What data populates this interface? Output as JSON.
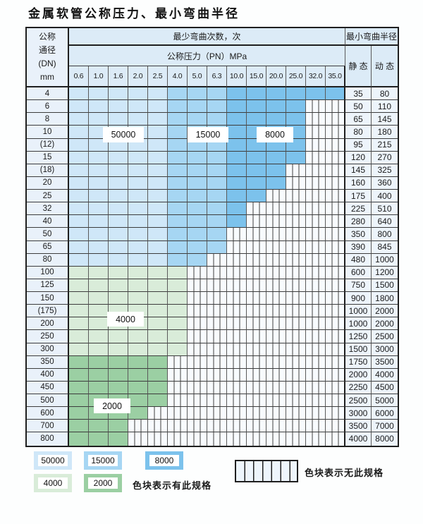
{
  "title": "金属软管公称压力、最小弯曲半径",
  "colors": {
    "blue_50000": "#cfe7f8",
    "blue_15000": "#a6d6f3",
    "blue_8000": "#7cc2ec",
    "green_4000": "#d9ecd9",
    "green_2000": "#9bcfa3",
    "hatch_bg": "#f8fbfe"
  },
  "table": {
    "header": {
      "dn_lines": [
        "公称",
        "通径",
        "(DN)",
        "mm"
      ],
      "bend_cycles": "最少弯曲次数，次",
      "pressure": "公称压力（PN）MPa",
      "pressure_values": [
        "0.6",
        "1.0",
        "1.6",
        "2.0",
        "2.5",
        "4.0",
        "5.0",
        "6.3",
        "10.0",
        "15.0",
        "20.0",
        "25.0",
        "32.0",
        "35.0"
      ],
      "min_bend_radius": "最小弯曲半径",
      "static": "静 态",
      "dynamic": "动 态"
    },
    "zone_columns": {
      "blue_50000": [
        0,
        4
      ],
      "blue_15000": [
        5,
        7
      ],
      "blue_8000": [
        8,
        13
      ]
    },
    "rows": [
      {
        "dn": "4",
        "colored": 14,
        "zone": "blue",
        "static": "35",
        "dynamic": "80"
      },
      {
        "dn": "6",
        "colored": 12,
        "zone": "blue",
        "static": "50",
        "dynamic": "110"
      },
      {
        "dn": "8",
        "colored": 12,
        "zone": "blue",
        "static": "65",
        "dynamic": "145"
      },
      {
        "dn": "10",
        "colored": 12,
        "zone": "blue",
        "static": "80",
        "dynamic": "180"
      },
      {
        "dn": "(12)",
        "colored": 12,
        "zone": "blue",
        "static": "95",
        "dynamic": "215"
      },
      {
        "dn": "15",
        "colored": 12,
        "zone": "blue",
        "static": "120",
        "dynamic": "270"
      },
      {
        "dn": "(18)",
        "colored": 11,
        "zone": "blue",
        "static": "145",
        "dynamic": "325"
      },
      {
        "dn": "20",
        "colored": 11,
        "zone": "blue",
        "static": "160",
        "dynamic": "360"
      },
      {
        "dn": "25",
        "colored": 10,
        "zone": "blue",
        "static": "175",
        "dynamic": "400"
      },
      {
        "dn": "32",
        "colored": 9,
        "zone": "blue",
        "static": "225",
        "dynamic": "510"
      },
      {
        "dn": "40",
        "colored": 9,
        "zone": "blue",
        "static": "280",
        "dynamic": "640"
      },
      {
        "dn": "50",
        "colored": 8,
        "zone": "blue",
        "static": "350",
        "dynamic": "800"
      },
      {
        "dn": "65",
        "colored": 8,
        "zone": "blue",
        "static": "390",
        "dynamic": "845"
      },
      {
        "dn": "80",
        "colored": 7,
        "zone": "blue",
        "static": "480",
        "dynamic": "1000"
      },
      {
        "dn": "100",
        "colored": 6,
        "zone": "green_4000",
        "static": "600",
        "dynamic": "1200"
      },
      {
        "dn": "125",
        "colored": 6,
        "zone": "green_4000",
        "static": "750",
        "dynamic": "1500"
      },
      {
        "dn": "150",
        "colored": 6,
        "zone": "green_4000",
        "static": "900",
        "dynamic": "1800"
      },
      {
        "dn": "(175)",
        "colored": 6,
        "zone": "green_4000",
        "static": "1000",
        "dynamic": "2000"
      },
      {
        "dn": "200",
        "colored": 6,
        "zone": "green_4000",
        "static": "1000",
        "dynamic": "2000"
      },
      {
        "dn": "250",
        "colored": 6,
        "zone": "green_4000",
        "static": "1250",
        "dynamic": "2500"
      },
      {
        "dn": "300",
        "colored": 6,
        "zone": "green_4000",
        "static": "1500",
        "dynamic": "3000"
      },
      {
        "dn": "350",
        "colored": 5,
        "zone": "green_2000",
        "static": "1750",
        "dynamic": "3500"
      },
      {
        "dn": "400",
        "colored": 5,
        "zone": "green_2000",
        "static": "2000",
        "dynamic": "4000"
      },
      {
        "dn": "450",
        "colored": 5,
        "zone": "green_2000",
        "static": "2250",
        "dynamic": "4500"
      },
      {
        "dn": "500",
        "colored": 5,
        "zone": "green_2000",
        "static": "2500",
        "dynamic": "5000"
      },
      {
        "dn": "600",
        "colored": 4,
        "zone": "green_2000",
        "static": "3000",
        "dynamic": "6000"
      },
      {
        "dn": "700",
        "colored": 3,
        "zone": "green_2000",
        "static": "3500",
        "dynamic": "7000"
      },
      {
        "dn": "800",
        "colored": 3,
        "zone": "green_2000",
        "static": "4000",
        "dynamic": "8000"
      }
    ],
    "overlays": [
      {
        "label": "50000"
      },
      {
        "label": "15000"
      },
      {
        "label": "8000"
      },
      {
        "label": "4000"
      },
      {
        "label": "2000"
      }
    ]
  },
  "legend": {
    "available": [
      {
        "label": "50000",
        "color_key": "blue_50000"
      },
      {
        "label": "15000",
        "color_key": "blue_15000"
      },
      {
        "label": "8000",
        "color_key": "blue_8000"
      },
      {
        "label": "4000",
        "color_key": "green_4000"
      },
      {
        "label": "2000",
        "color_key": "green_2000"
      }
    ],
    "available_note": "色块表示有此规格",
    "unavailable_note": "色块表示无此规格"
  }
}
